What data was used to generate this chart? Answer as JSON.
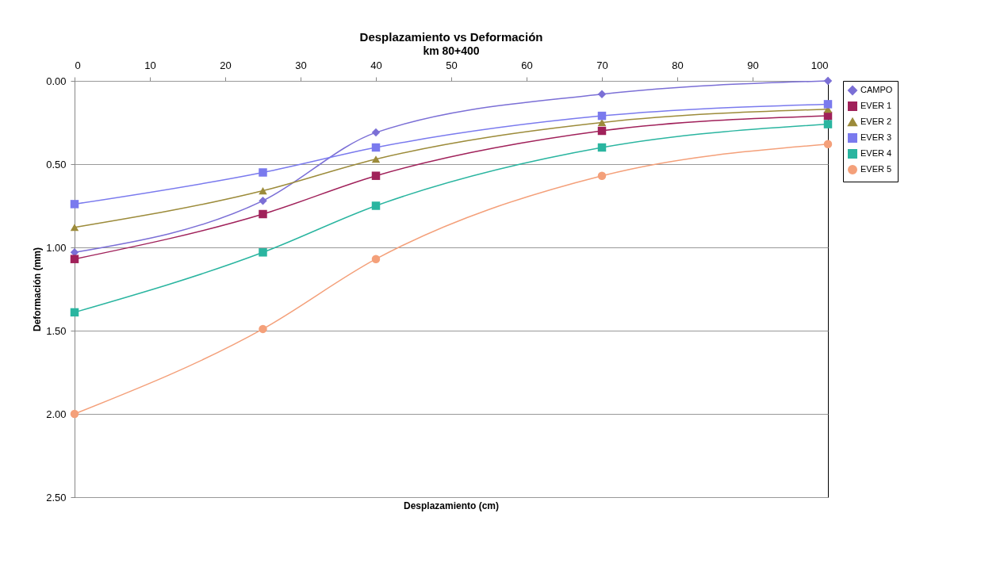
{
  "chart_data": {
    "type": "line",
    "title": "Desplazamiento vs Deformación",
    "subtitle": "km 80+400",
    "xlabel": "Desplazamiento (cm)",
    "ylabel": "Deformación (mm)",
    "x": [
      0,
      25,
      40,
      70,
      100
    ],
    "series": [
      {
        "name": "CAMPO",
        "color": "#7b6fd6",
        "marker": "diamond",
        "values": [
          1.03,
          0.72,
          0.31,
          0.08,
          0.0
        ]
      },
      {
        "name": "EVER 1",
        "color": "#a0215a",
        "marker": "square",
        "values": [
          1.07,
          0.8,
          0.57,
          0.3,
          0.21
        ]
      },
      {
        "name": "EVER 2",
        "color": "#9c8b3a",
        "marker": "triangle",
        "values": [
          0.88,
          0.66,
          0.47,
          0.25,
          0.17
        ]
      },
      {
        "name": "EVER 3",
        "color": "#7a7aee",
        "marker": "square",
        "values": [
          0.74,
          0.55,
          0.4,
          0.21,
          0.14
        ]
      },
      {
        "name": "EVER 4",
        "color": "#2ab5a0",
        "marker": "square",
        "values": [
          1.39,
          1.03,
          0.75,
          0.4,
          0.26
        ]
      },
      {
        "name": "EVER 5",
        "color": "#f4a07a",
        "marker": "circle",
        "values": [
          2.0,
          1.49,
          1.07,
          0.57,
          0.38
        ]
      }
    ],
    "xlim": [
      0,
      100
    ],
    "xticks": [
      0,
      10,
      20,
      30,
      40,
      50,
      60,
      70,
      80,
      90,
      100
    ],
    "ylim": [
      2.5,
      0
    ],
    "yticks": [
      {
        "value": 0,
        "label": "0.00"
      },
      {
        "value": 0.5,
        "label": "0.50"
      },
      {
        "value": 1,
        "label": "1.00"
      },
      {
        "value": 1.5,
        "label": "1.50"
      },
      {
        "value": 2,
        "label": "2.00"
      },
      {
        "value": 2.5,
        "label": "2.50"
      }
    ],
    "grid": "y",
    "legend": "right",
    "line_style": "solid"
  }
}
